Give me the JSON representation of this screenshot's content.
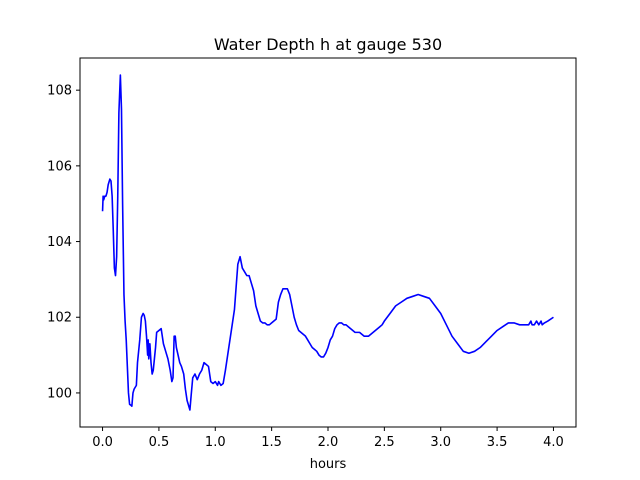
{
  "chart_data": {
    "type": "line",
    "title": "Water Depth h at gauge 530",
    "xlabel": "hours",
    "ylabel": "",
    "xlim": [
      -0.2,
      4.2
    ],
    "ylim": [
      99.1,
      108.85
    ],
    "xticks": [
      0.0,
      0.5,
      1.0,
      1.5,
      2.0,
      2.5,
      3.0,
      3.5,
      4.0
    ],
    "xtick_labels": [
      "0.0",
      "0.5",
      "1.0",
      "1.5",
      "2.0",
      "2.5",
      "3.0",
      "3.5",
      "4.0"
    ],
    "yticks": [
      100,
      102,
      104,
      106,
      108
    ],
    "ytick_labels": [
      "100",
      "102",
      "104",
      "106",
      "108"
    ],
    "grid": false,
    "line_color": "#0000ff",
    "series": [
      {
        "points": [
          [
            0.0,
            104.8
          ],
          [
            0.005,
            105.2
          ],
          [
            0.01,
            105.1
          ],
          [
            0.02,
            105.2
          ],
          [
            0.03,
            105.2
          ],
          [
            0.04,
            105.3
          ],
          [
            0.05,
            105.5
          ],
          [
            0.065,
            105.65
          ],
          [
            0.075,
            105.6
          ],
          [
            0.085,
            105.2
          ],
          [
            0.095,
            104.3
          ],
          [
            0.105,
            103.3
          ],
          [
            0.115,
            103.1
          ],
          [
            0.125,
            103.6
          ],
          [
            0.135,
            105.2
          ],
          [
            0.145,
            107.4
          ],
          [
            0.158,
            108.4
          ],
          [
            0.168,
            107.5
          ],
          [
            0.178,
            105.0
          ],
          [
            0.19,
            102.6
          ],
          [
            0.2,
            101.9
          ],
          [
            0.21,
            101.4
          ],
          [
            0.22,
            100.7
          ],
          [
            0.23,
            100.0
          ],
          [
            0.24,
            99.7
          ],
          [
            0.25,
            99.68
          ],
          [
            0.26,
            99.65
          ],
          [
            0.27,
            100.0
          ],
          [
            0.28,
            100.1
          ],
          [
            0.3,
            100.2
          ],
          [
            0.31,
            100.8
          ],
          [
            0.33,
            101.4
          ],
          [
            0.345,
            102.0
          ],
          [
            0.36,
            102.1
          ],
          [
            0.37,
            102.05
          ],
          [
            0.38,
            101.9
          ],
          [
            0.39,
            101.5
          ],
          [
            0.4,
            101.0
          ],
          [
            0.405,
            101.4
          ],
          [
            0.41,
            100.9
          ],
          [
            0.42,
            101.3
          ],
          [
            0.43,
            100.8
          ],
          [
            0.44,
            100.5
          ],
          [
            0.45,
            100.6
          ],
          [
            0.46,
            100.9
          ],
          [
            0.47,
            101.2
          ],
          [
            0.48,
            101.6
          ],
          [
            0.5,
            101.65
          ],
          [
            0.52,
            101.7
          ],
          [
            0.54,
            101.3
          ],
          [
            0.56,
            101.1
          ],
          [
            0.58,
            100.9
          ],
          [
            0.6,
            100.6
          ],
          [
            0.615,
            100.3
          ],
          [
            0.625,
            100.4
          ],
          [
            0.635,
            101.5
          ],
          [
            0.645,
            101.5
          ],
          [
            0.655,
            101.2
          ],
          [
            0.67,
            101.0
          ],
          [
            0.685,
            100.8
          ],
          [
            0.7,
            100.7
          ],
          [
            0.71,
            100.6
          ],
          [
            0.72,
            100.5
          ],
          [
            0.735,
            100.1
          ],
          [
            0.75,
            99.8
          ],
          [
            0.76,
            99.7
          ],
          [
            0.775,
            99.55
          ],
          [
            0.785,
            99.9
          ],
          [
            0.8,
            100.4
          ],
          [
            0.82,
            100.5
          ],
          [
            0.84,
            100.35
          ],
          [
            0.86,
            100.5
          ],
          [
            0.88,
            100.6
          ],
          [
            0.9,
            100.8
          ],
          [
            0.92,
            100.75
          ],
          [
            0.94,
            100.7
          ],
          [
            0.96,
            100.3
          ],
          [
            0.98,
            100.25
          ],
          [
            1.0,
            100.3
          ],
          [
            1.02,
            100.2
          ],
          [
            1.03,
            100.3
          ],
          [
            1.05,
            100.2
          ],
          [
            1.07,
            100.25
          ],
          [
            1.09,
            100.6
          ],
          [
            1.12,
            101.2
          ],
          [
            1.15,
            101.8
          ],
          [
            1.17,
            102.2
          ],
          [
            1.185,
            102.8
          ],
          [
            1.2,
            103.4
          ],
          [
            1.22,
            103.6
          ],
          [
            1.24,
            103.3
          ],
          [
            1.26,
            103.2
          ],
          [
            1.28,
            103.1
          ],
          [
            1.3,
            103.1
          ],
          [
            1.32,
            102.9
          ],
          [
            1.34,
            102.7
          ],
          [
            1.36,
            102.3
          ],
          [
            1.38,
            102.1
          ],
          [
            1.4,
            101.9
          ],
          [
            1.42,
            101.85
          ],
          [
            1.44,
            101.85
          ],
          [
            1.46,
            101.8
          ],
          [
            1.48,
            101.8
          ],
          [
            1.5,
            101.85
          ],
          [
            1.52,
            101.9
          ],
          [
            1.54,
            101.95
          ],
          [
            1.56,
            102.4
          ],
          [
            1.58,
            102.6
          ],
          [
            1.6,
            102.75
          ],
          [
            1.62,
            102.75
          ],
          [
            1.64,
            102.75
          ],
          [
            1.66,
            102.6
          ],
          [
            1.68,
            102.3
          ],
          [
            1.7,
            102.0
          ],
          [
            1.72,
            101.8
          ],
          [
            1.74,
            101.65
          ],
          [
            1.76,
            101.6
          ],
          [
            1.78,
            101.55
          ],
          [
            1.8,
            101.5
          ],
          [
            1.82,
            101.4
          ],
          [
            1.84,
            101.3
          ],
          [
            1.86,
            101.2
          ],
          [
            1.88,
            101.15
          ],
          [
            1.9,
            101.1
          ],
          [
            1.92,
            101.0
          ],
          [
            1.94,
            100.95
          ],
          [
            1.96,
            100.95
          ],
          [
            1.98,
            101.05
          ],
          [
            2.0,
            101.2
          ],
          [
            2.02,
            101.4
          ],
          [
            2.04,
            101.5
          ],
          [
            2.06,
            101.7
          ],
          [
            2.08,
            101.8
          ],
          [
            2.1,
            101.85
          ],
          [
            2.12,
            101.85
          ],
          [
            2.14,
            101.8
          ],
          [
            2.16,
            101.8
          ],
          [
            2.18,
            101.75
          ],
          [
            2.2,
            101.7
          ],
          [
            2.22,
            101.65
          ],
          [
            2.24,
            101.6
          ],
          [
            2.26,
            101.6
          ],
          [
            2.28,
            101.6
          ],
          [
            2.3,
            101.55
          ],
          [
            2.32,
            101.5
          ],
          [
            2.34,
            101.5
          ],
          [
            2.36,
            101.5
          ],
          [
            2.38,
            101.55
          ],
          [
            2.4,
            101.6
          ],
          [
            2.42,
            101.65
          ],
          [
            2.44,
            101.7
          ],
          [
            2.46,
            101.75
          ],
          [
            2.48,
            101.8
          ],
          [
            2.5,
            101.9
          ],
          [
            2.55,
            102.1
          ],
          [
            2.6,
            102.3
          ],
          [
            2.65,
            102.4
          ],
          [
            2.7,
            102.5
          ],
          [
            2.75,
            102.55
          ],
          [
            2.8,
            102.6
          ],
          [
            2.85,
            102.55
          ],
          [
            2.9,
            102.5
          ],
          [
            2.95,
            102.3
          ],
          [
            3.0,
            102.1
          ],
          [
            3.05,
            101.8
          ],
          [
            3.1,
            101.5
          ],
          [
            3.15,
            101.3
          ],
          [
            3.2,
            101.1
          ],
          [
            3.25,
            101.05
          ],
          [
            3.3,
            101.1
          ],
          [
            3.35,
            101.2
          ],
          [
            3.4,
            101.35
          ],
          [
            3.45,
            101.5
          ],
          [
            3.5,
            101.65
          ],
          [
            3.55,
            101.75
          ],
          [
            3.6,
            101.85
          ],
          [
            3.65,
            101.85
          ],
          [
            3.7,
            101.8
          ],
          [
            3.75,
            101.8
          ],
          [
            3.78,
            101.8
          ],
          [
            3.8,
            101.9
          ],
          [
            3.81,
            101.8
          ],
          [
            3.83,
            101.8
          ],
          [
            3.85,
            101.9
          ],
          [
            3.87,
            101.8
          ],
          [
            3.89,
            101.9
          ],
          [
            3.9,
            101.8
          ],
          [
            3.92,
            101.85
          ],
          [
            3.95,
            101.9
          ],
          [
            4.0,
            102.0
          ]
        ]
      }
    ]
  }
}
